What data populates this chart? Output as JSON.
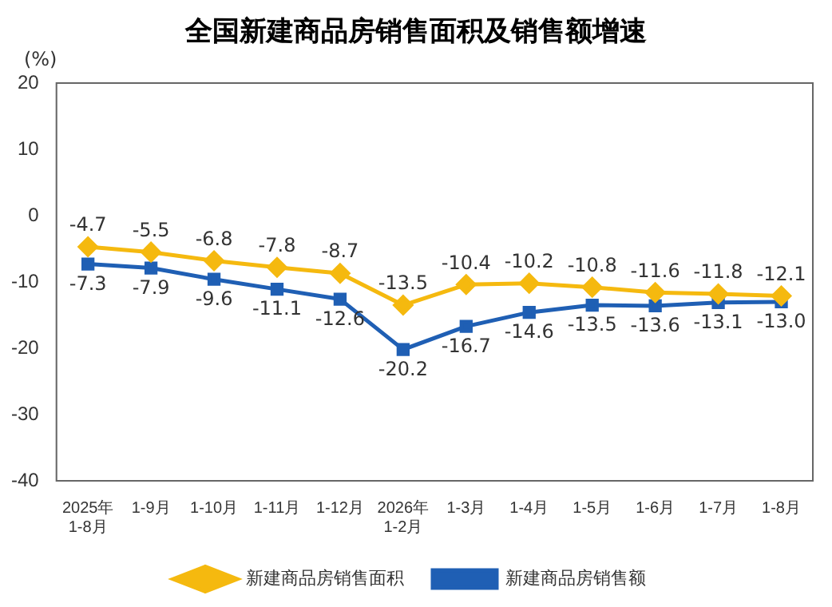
{
  "chart_data": {
    "type": "line",
    "title": "全国新建商品房销售面积及销售额增速",
    "ylabel": "(%)",
    "categories": [
      "2025年\n1-8月",
      "1-9月",
      "1-10月",
      "1-11月",
      "1-12月",
      "2026年\n1-2月",
      "1-3月",
      "1-4月",
      "1-5月",
      "1-6月",
      "1-7月",
      "1-8月"
    ],
    "series": [
      {
        "name": "新建商品房销售面积",
        "color": "#f5b90f",
        "marker": "diamond",
        "values": [
          -4.7,
          -5.5,
          -6.8,
          -7.8,
          -8.7,
          -13.5,
          -10.4,
          -10.2,
          -10.8,
          -11.6,
          -11.8,
          -12.1
        ]
      },
      {
        "name": "新建商品房销售额",
        "color": "#1f5fb4",
        "marker": "square",
        "values": [
          -7.3,
          -7.9,
          -9.6,
          -11.1,
          -12.6,
          -20.2,
          -16.7,
          -14.6,
          -13.5,
          -13.6,
          -13.1,
          -13.0
        ],
        "value_labels": [
          "-7.3",
          "-7.9",
          "-9.6",
          "-11.1",
          "-12.6",
          "-20.2",
          "-16.7",
          "-14.6",
          "-13.5",
          "-13.6",
          "-13.1",
          "-13.0"
        ]
      }
    ],
    "ylim": [
      -40,
      20
    ],
    "yticks": [
      -40,
      -30,
      -20,
      -10,
      0,
      10,
      20
    ],
    "grid": false,
    "legend": "bottom",
    "data_labels": true
  }
}
